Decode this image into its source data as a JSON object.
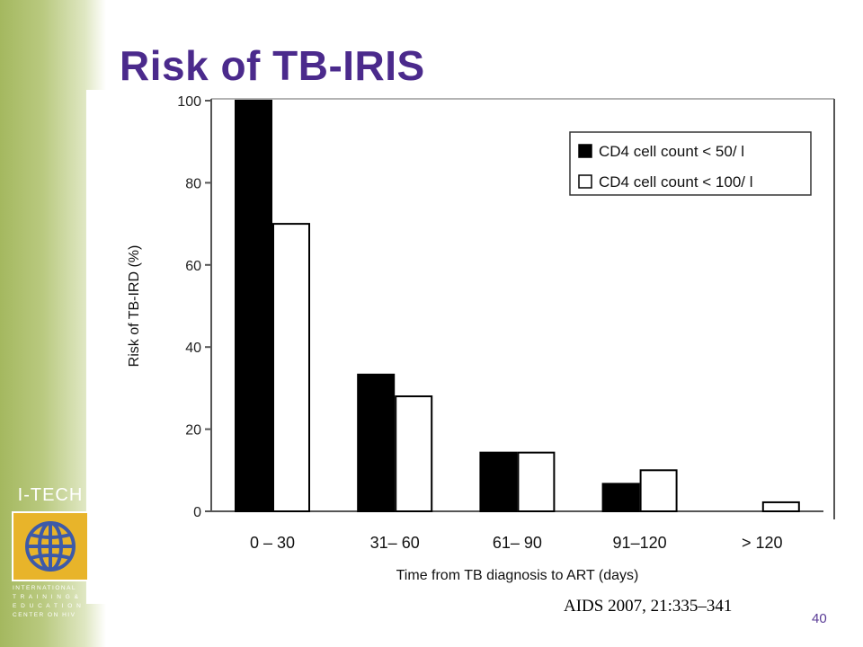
{
  "slide": {
    "title": "Risk of TB-IRIS",
    "citation": "AIDS 2007, 21:335–341",
    "page_number": "40"
  },
  "logo": {
    "name": "I-TECH",
    "lines": [
      "INTERNATIONAL",
      "T R A I N I N G &",
      "E D U C A T I O N",
      "CENTER ON HIV"
    ]
  },
  "colors": {
    "title": "#4b2a8c",
    "sidebar": "#a4b85f",
    "logo_gold": "#e8b42a",
    "logo_blue": "#3d5aa8",
    "bar_lt50": "#000000",
    "bar_lt100": "#ffffff"
  },
  "chart_data": {
    "type": "bar",
    "title": "",
    "xlabel": "Time from TB diagnosis to ART (days)",
    "ylabel": "Risk of TB-IRD (%)",
    "ylim": [
      0,
      100
    ],
    "yticks": [
      0,
      20,
      40,
      60,
      80,
      100
    ],
    "categories": [
      "0 – 30",
      "31– 60",
      "61– 90",
      "91–120",
      "> 120"
    ],
    "series": [
      {
        "name": "CD4 cell count < 50/ l",
        "values": [
          100,
          33.3,
          14.3,
          6.7,
          0
        ],
        "color": "#000000"
      },
      {
        "name": "CD4 cell count < 100/ l",
        "values": [
          70,
          28,
          14.3,
          10,
          2.2
        ],
        "color": "#ffffff"
      }
    ],
    "grid": false,
    "legend": "top-right"
  }
}
